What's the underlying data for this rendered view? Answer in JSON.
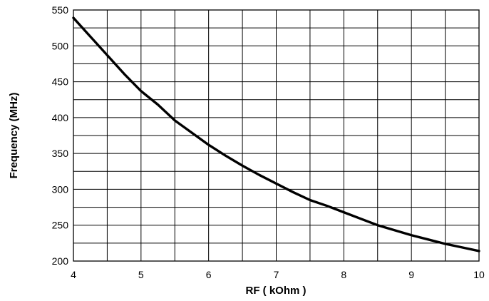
{
  "chart_data": {
    "type": "line",
    "title": "",
    "xlabel": "RF ( kOhm )",
    "ylabel": "Frequency (MHz)",
    "xlim": [
      4,
      10
    ],
    "ylim": [
      200,
      550
    ],
    "grid": true,
    "x_ticks": [
      4,
      5,
      6,
      7,
      8,
      9,
      10
    ],
    "y_ticks": [
      200,
      250,
      300,
      350,
      400,
      450,
      500,
      550
    ],
    "x_tick_labels": [
      "4",
      "5",
      "6",
      "7",
      "8",
      "9",
      "10"
    ],
    "y_tick_labels": [
      "200",
      "250",
      "300",
      "350",
      "400",
      "450",
      "500",
      "550"
    ],
    "x_minor_step": 0.5,
    "y_minor_step": 25,
    "colors": {
      "line": "#000000",
      "grid": "#000000",
      "background": "#ffffff"
    },
    "series": [
      {
        "x": [
          4,
          4.25,
          4.5,
          4.75,
          5,
          5.25,
          5.5,
          5.75,
          6,
          6.25,
          6.5,
          6.75,
          7,
          7.25,
          7.5,
          7.75,
          8,
          8.25,
          8.5,
          8.75,
          9,
          9.25,
          9.5,
          9.75,
          10
        ],
        "values": [
          539,
          513,
          487,
          461,
          437,
          418,
          396,
          379,
          362,
          347,
          333,
          320,
          308,
          296,
          285,
          277,
          268,
          259,
          250,
          243,
          236,
          230,
          224,
          219,
          214
        ]
      }
    ]
  }
}
